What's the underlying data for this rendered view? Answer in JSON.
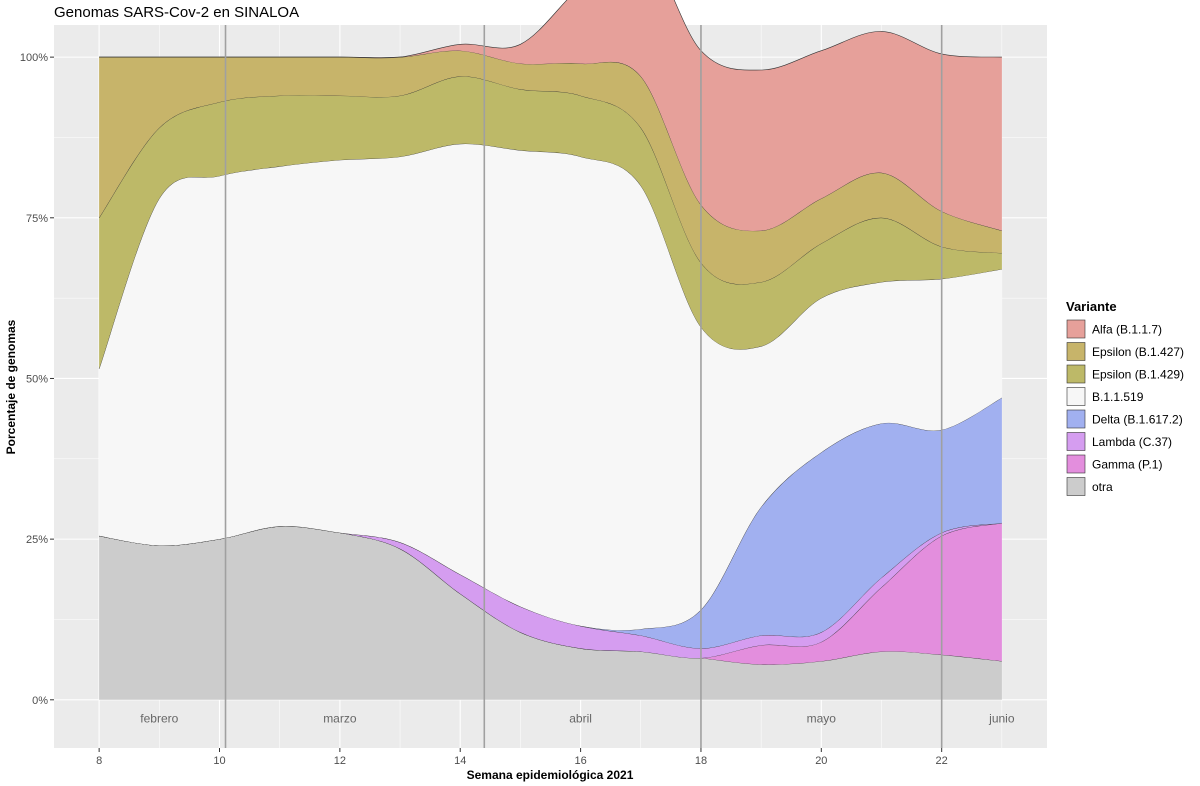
{
  "chart_data": {
    "type": "area",
    "title": "Genomas SARS-Cov-2 en SINALOA",
    "xlabel": "Semana epidemiológica 2021",
    "ylabel": "Porcentaje de genomas",
    "xlim": [
      7.25,
      23.75
    ],
    "ylim": [
      -0.075,
      1.05
    ],
    "x_ticks": [
      8,
      10,
      12,
      14,
      16,
      18,
      20,
      22
    ],
    "y_ticks": [
      {
        "value": 0,
        "label": "0%"
      },
      {
        "value": 0.25,
        "label": "25%"
      },
      {
        "value": 0.5,
        "label": "50%"
      },
      {
        "value": 0.75,
        "label": "75%"
      },
      {
        "value": 1.0,
        "label": "100%"
      }
    ],
    "month_lines": [
      10.1,
      14.4,
      18.0,
      22.0
    ],
    "month_labels": [
      {
        "label": "febrero",
        "x": 9.0
      },
      {
        "label": "marzo",
        "x": 12.0
      },
      {
        "label": "abril",
        "x": 16.0
      },
      {
        "label": "mayo",
        "x": 20.0
      },
      {
        "label": "junio",
        "x": 23.0
      }
    ],
    "x": [
      8,
      9,
      10,
      11,
      12,
      13,
      14,
      15,
      16,
      17,
      18,
      19,
      20,
      21,
      22,
      23
    ],
    "legend_title": "Variante",
    "legend_position": "right",
    "series": [
      {
        "name": "Alfa (B.1.1.7)",
        "color": "#E6A09A",
        "values": [
          0,
          0,
          0,
          0,
          0,
          0,
          0.01,
          0.03,
          0.12,
          0.21,
          0.24,
          0.25,
          0.23,
          0.22,
          0.245,
          0.27
        ]
      },
      {
        "name": "Epsilon (B.1.427)",
        "color": "#C7B46A",
        "values": [
          0.25,
          0.11,
          0.07,
          0.06,
          0.06,
          0.06,
          0.04,
          0.04,
          0.05,
          0.08,
          0.09,
          0.08,
          0.07,
          0.07,
          0.055,
          0.035
        ]
      },
      {
        "name": "Epsilon (B.1.429)",
        "color": "#BDB968",
        "values": [
          0.235,
          0.11,
          0.115,
          0.11,
          0.1,
          0.095,
          0.105,
          0.095,
          0.095,
          0.09,
          0.1,
          0.1,
          0.085,
          0.1,
          0.05,
          0.025
        ]
      },
      {
        "name": "B.1.1.519",
        "color": "#F7F7F7",
        "values": [
          0.26,
          0.54,
          0.565,
          0.56,
          0.58,
          0.6,
          0.67,
          0.71,
          0.73,
          0.69,
          0.44,
          0.25,
          0.24,
          0.22,
          0.235,
          0.2
        ]
      },
      {
        "name": "Delta (B.1.617.2)",
        "color": "#A1B0F0",
        "values": [
          0,
          0,
          0,
          0,
          0,
          0,
          0,
          0,
          0,
          0.01,
          0.06,
          0.2,
          0.28,
          0.24,
          0.16,
          0.195
        ]
      },
      {
        "name": "Lambda (C.37)",
        "color": "#D59DF0",
        "values": [
          0,
          0,
          0,
          0,
          0,
          0.01,
          0.03,
          0.04,
          0.035,
          0.025,
          0.015,
          0.015,
          0.015,
          0.015,
          0.005,
          0
        ]
      },
      {
        "name": "Gamma (P.1)",
        "color": "#E38EDD",
        "values": [
          0,
          0,
          0,
          0,
          0,
          0,
          0,
          0,
          0,
          0,
          0,
          0.03,
          0.03,
          0.1,
          0.185,
          0.215
        ]
      },
      {
        "name": "otra",
        "color": "#CCCCCC",
        "values": [
          0.255,
          0.24,
          0.25,
          0.27,
          0.26,
          0.235,
          0.165,
          0.105,
          0.08,
          0.075,
          0.065,
          0.055,
          0.06,
          0.075,
          0.07,
          0.06
        ]
      }
    ]
  }
}
